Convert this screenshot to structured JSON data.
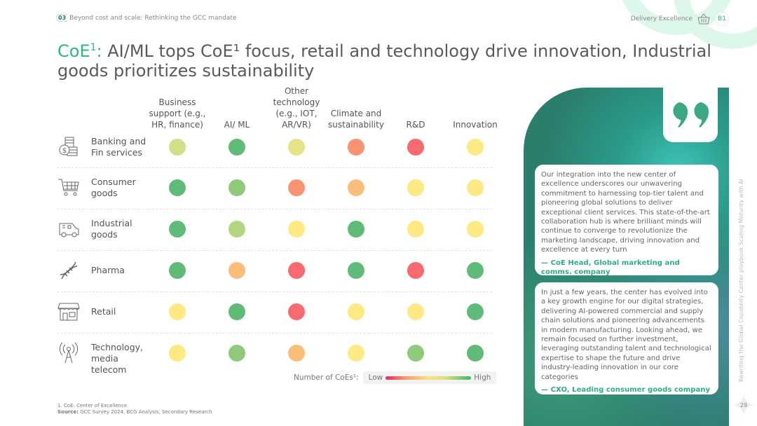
{
  "header": {
    "section_number": "03",
    "section_title": "Beyond cost and scale: Rethinking the GCC mandate",
    "category": "Delivery Excellence",
    "category_icon": "basket-icon",
    "badge": "B1"
  },
  "title": {
    "prefix": "CoE",
    "prefix_sup": "1",
    "prefix_colon": ":",
    "text": " AI/ML tops CoE¹ focus, retail and technology drive innovation, Industrial goods prioritizes sustainability"
  },
  "chart_data": {
    "type": "heatmap",
    "columns": [
      "Business support (e.g., HR, finance)",
      "AI/ ML",
      "Other technology (e.g., IOT, AR/VR)",
      "Climate and sustainability",
      "R&D",
      "Innovation"
    ],
    "rows": [
      {
        "label": "Banking and Fin services",
        "icon": "banking-icon",
        "values": [
          6,
          9,
          5,
          2,
          1,
          4
        ]
      },
      {
        "label": "Consumer goods",
        "icon": "shopping-cart-icon",
        "values": [
          9,
          8,
          2,
          3,
          4,
          4
        ]
      },
      {
        "label": "Industrial goods",
        "icon": "delivery-van-icon",
        "values": [
          9,
          7,
          4,
          9,
          4,
          4
        ]
      },
      {
        "label": "Pharma",
        "icon": "dna-icon",
        "values": [
          9,
          3,
          1,
          9,
          1,
          9
        ]
      },
      {
        "label": "Retail",
        "icon": "storefront-icon",
        "values": [
          4,
          9,
          1,
          4,
          4,
          9
        ]
      },
      {
        "label": "Technology, media telecom",
        "icon": "antenna-icon",
        "values": [
          4,
          8,
          3,
          4,
          8,
          9
        ]
      }
    ],
    "scale": {
      "min": 1,
      "max": 9,
      "colors": [
        "#f86a6d",
        "#fa9374",
        "#fbbe7a",
        "#fee982",
        "#e5e287",
        "#d2df86",
        "#b2d67f",
        "#8fca7a",
        "#5fbb78"
      ]
    },
    "legend": {
      "label": "Number of CoEs¹:",
      "low": "Low",
      "high": "High"
    }
  },
  "footnote": {
    "note": "1. CoE: Center of Excellence",
    "source_label": "Source:",
    "source": " GCC Survey 2024, BCG Analysis, Secondary Research"
  },
  "quotes": [
    {
      "text": "Our integration into the new center of excellence underscores our unwavering commitment to harnessing top-tier talent and pioneering global solutions to deliver exceptional client services. This state-of-the-art collaboration hub is where brilliant minds will continue to converge to revolutionize the marketing landscape, driving innovation and excellence at every turn",
      "attribution": "— CoE Head, Global marketing and comms. company"
    },
    {
      "text": "In just a few years, the center has evolved into a key growth engine for our digital strategies, delivering AI-powered commercial and supply chain solutions and pioneering advancements in modern manufacturing. Looking ahead, we remain focused on further investment, leveraging outstanding talent and technological expertise to shape the future and drive industry-leading innovation in our core categories",
      "attribution": "— CXO, Leading consumer goods company"
    }
  ],
  "side_text": "Rewriting the Global Capability Center playbook Scaling Maturity with AI",
  "page_number": "29"
}
